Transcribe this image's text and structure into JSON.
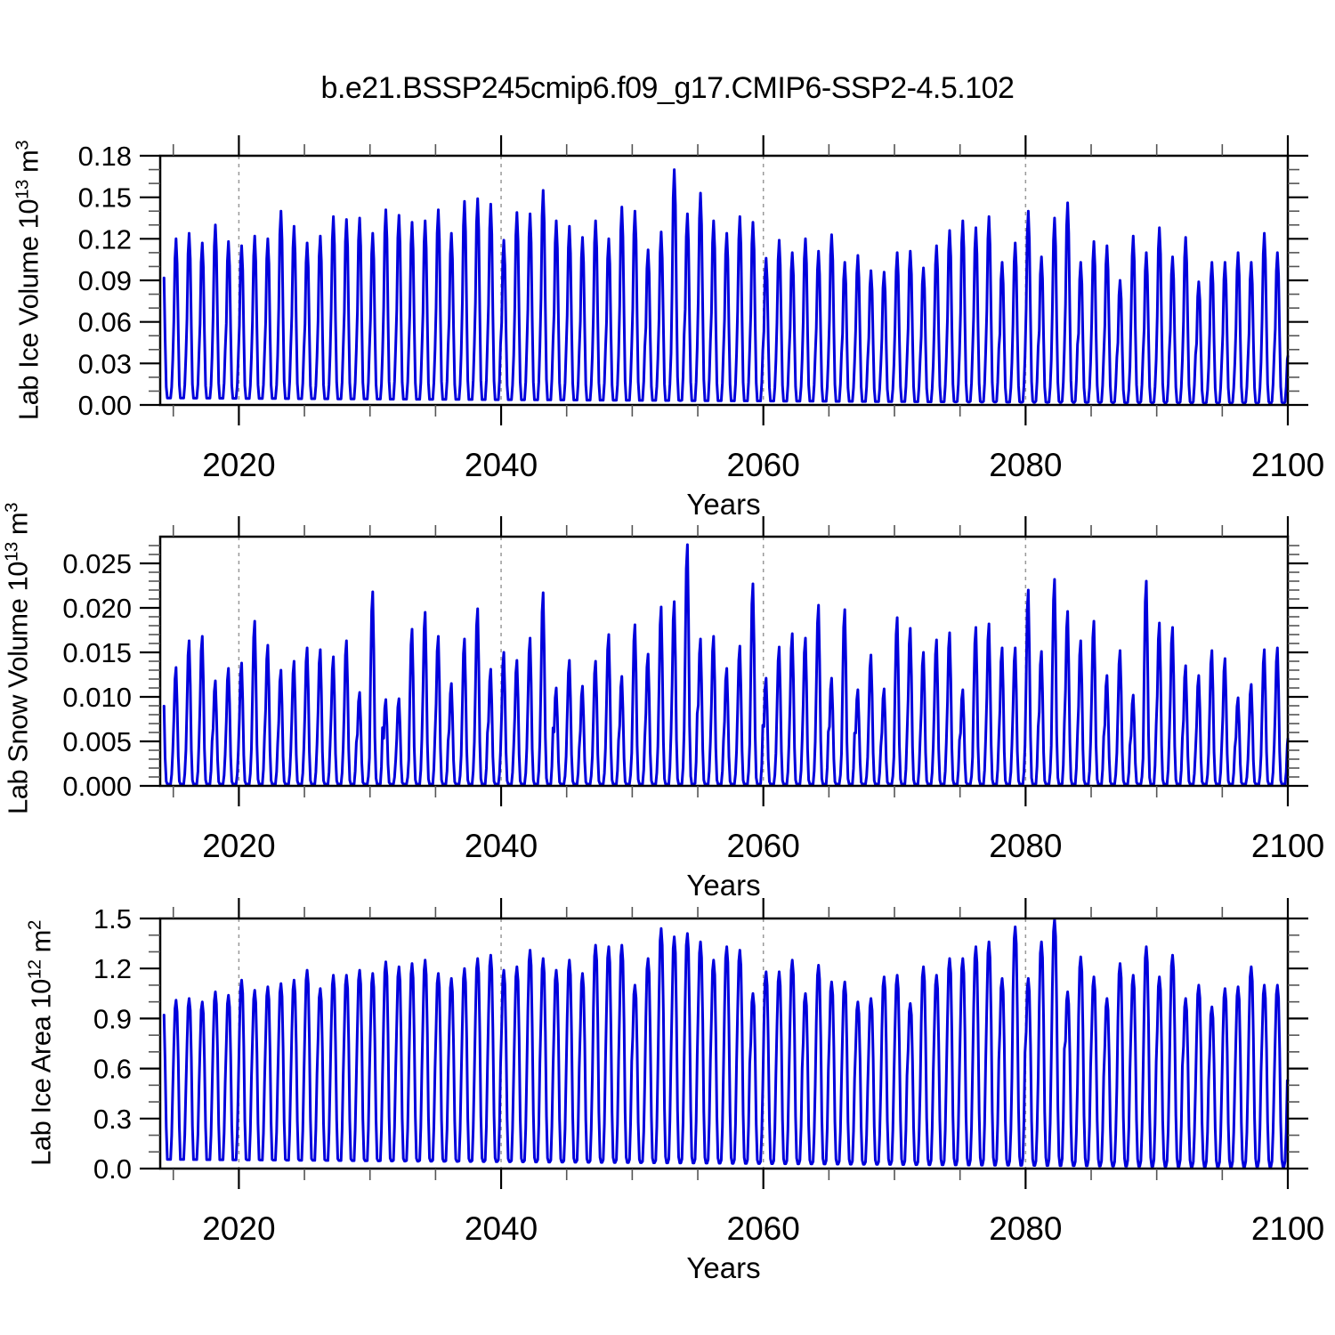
{
  "chart": {
    "title": "b.e21.BSSP245cmip6.f09_g17.CMIP6-SSP2-4.5.102"
  },
  "chart_data": [
    {
      "type": "line",
      "panel": "ice-volume",
      "ylabel": "Lab Ice Volume 10¹³ m³",
      "ylabel_parts": {
        "pre": "Lab Ice Volume 10",
        "sup1": "13",
        "mid": " m",
        "sup2": "3"
      },
      "xlabel": "Years",
      "color": "#0000dd",
      "x_range": [
        2014,
        2100
      ],
      "ylim": 0.18,
      "y_major_ticks": [
        0.0,
        0.03,
        0.06,
        0.09,
        0.12,
        0.15,
        0.18
      ],
      "y_major_labels": [
        "0.00",
        "0.03",
        "0.06",
        "0.09",
        "0.12",
        "0.15",
        "0.18"
      ],
      "y_minor_step": 0.01,
      "x_major_ticks": [
        2020,
        2040,
        2060,
        2080,
        2100
      ],
      "x_major_labels": [
        "2020",
        "2040",
        "2060",
        "2080",
        "2100"
      ],
      "x_minor_step": 5,
      "x_gridlines": [
        2020,
        2040,
        2060,
        2080
      ],
      "start_year": 2014,
      "annual_peaks": [
        0.108,
        0.12,
        0.124,
        0.117,
        0.13,
        0.118,
        0.115,
        0.122,
        0.12,
        0.14,
        0.129,
        0.117,
        0.122,
        0.136,
        0.134,
        0.135,
        0.124,
        0.141,
        0.137,
        0.132,
        0.133,
        0.141,
        0.124,
        0.147,
        0.149,
        0.145,
        0.119,
        0.139,
        0.138,
        0.155,
        0.133,
        0.129,
        0.121,
        0.133,
        0.12,
        0.143,
        0.14,
        0.112,
        0.125,
        0.17,
        0.138,
        0.153,
        0.133,
        0.124,
        0.136,
        0.132,
        0.106,
        0.119,
        0.11,
        0.12,
        0.111,
        0.123,
        0.103,
        0.108,
        0.097,
        0.096,
        0.11,
        0.111,
        0.099,
        0.115,
        0.126,
        0.133,
        0.128,
        0.136,
        0.103,
        0.117,
        0.14,
        0.107,
        0.135,
        0.146,
        0.103,
        0.118,
        0.115,
        0.09,
        0.122,
        0.11,
        0.128,
        0.107,
        0.121,
        0.089,
        0.103,
        0.103,
        0.11,
        0.103,
        0.124,
        0.11
      ],
      "seasonal_shape": [
        0.5,
        0.88,
        1.0,
        0.85,
        0.45,
        0.12,
        0.02,
        0.004,
        0.004,
        0.02,
        0.12,
        0.3
      ],
      "trough_start": 0.005,
      "trough_end": 0.001
    },
    {
      "type": "line",
      "panel": "snow-volume",
      "ylabel": "Lab Snow Volume 10¹³ m³",
      "ylabel_parts": {
        "pre": "Lab Snow Volume 10",
        "sup1": "13",
        "mid": " m",
        "sup2": "3"
      },
      "xlabel": "Years",
      "color": "#0000dd",
      "x_range": [
        2014,
        2100
      ],
      "ylim": 0.028,
      "y_major_ticks": [
        0.0,
        0.005,
        0.01,
        0.015,
        0.02,
        0.025
      ],
      "y_major_labels": [
        "0.000",
        "0.005",
        "0.010",
        "0.015",
        "0.020",
        "0.025"
      ],
      "y_minor_step": 0.001,
      "x_major_ticks": [
        2020,
        2040,
        2060,
        2080,
        2100
      ],
      "x_major_labels": [
        "2020",
        "2040",
        "2060",
        "2080",
        "2100"
      ],
      "x_minor_step": 5,
      "x_gridlines": [
        2020,
        2040,
        2060,
        2080
      ],
      "start_year": 2014,
      "annual_peaks": [
        0.0128,
        0.0133,
        0.0163,
        0.0168,
        0.0118,
        0.0132,
        0.0138,
        0.0185,
        0.0158,
        0.013,
        0.014,
        0.0155,
        0.0153,
        0.0145,
        0.0163,
        0.0105,
        0.0218,
        0.0097,
        0.0098,
        0.0176,
        0.0195,
        0.0168,
        0.0115,
        0.0165,
        0.0199,
        0.0131,
        0.015,
        0.0141,
        0.0166,
        0.0217,
        0.011,
        0.0141,
        0.0112,
        0.014,
        0.017,
        0.0123,
        0.0181,
        0.0148,
        0.0201,
        0.0207,
        0.0271,
        0.0165,
        0.0168,
        0.0132,
        0.0157,
        0.0227,
        0.0121,
        0.0156,
        0.0171,
        0.0166,
        0.0203,
        0.0121,
        0.0198,
        0.0108,
        0.0147,
        0.0109,
        0.0189,
        0.0177,
        0.015,
        0.0164,
        0.0172,
        0.0108,
        0.0178,
        0.0182,
        0.0155,
        0.0155,
        0.022,
        0.0151,
        0.0232,
        0.0196,
        0.0163,
        0.0185,
        0.0124,
        0.0152,
        0.0102,
        0.023,
        0.0183,
        0.0178,
        0.0135,
        0.0124,
        0.0152,
        0.0143,
        0.0099,
        0.0114,
        0.0153,
        0.0155
      ],
      "seasonal_shape": [
        0.55,
        0.9,
        1.0,
        0.7,
        0.25,
        0.04,
        0.002,
        0.001,
        0.001,
        0.01,
        0.1,
        0.3
      ],
      "trough_start": 0.0002,
      "trough_end": 0.0002
    },
    {
      "type": "line",
      "panel": "ice-area",
      "ylabel": "Lab Ice Area 10¹² m²",
      "ylabel_parts": {
        "pre": "Lab Ice Area 10",
        "sup1": "12",
        "mid": " m",
        "sup2": "2"
      },
      "xlabel": "Years",
      "color": "#0000dd",
      "x_range": [
        2014,
        2100
      ],
      "ylim": 1.5,
      "y_major_ticks": [
        0.0,
        0.3,
        0.6,
        0.9,
        1.2,
        1.5
      ],
      "y_major_labels": [
        "0.0",
        "0.3",
        "0.6",
        "0.9",
        "1.2",
        "1.5"
      ],
      "y_minor_step": 0.1,
      "x_major_ticks": [
        2020,
        2040,
        2060,
        2080,
        2100
      ],
      "x_major_labels": [
        "2020",
        "2040",
        "2060",
        "2080",
        "2100"
      ],
      "x_minor_step": 5,
      "x_gridlines": [
        2020,
        2040,
        2060,
        2080
      ],
      "start_year": 2014,
      "annual_peaks": [
        0.99,
        1.01,
        1.02,
        1.0,
        1.06,
        1.04,
        1.13,
        1.07,
        1.09,
        1.11,
        1.13,
        1.19,
        1.08,
        1.16,
        1.16,
        1.19,
        1.17,
        1.24,
        1.21,
        1.23,
        1.25,
        1.17,
        1.14,
        1.2,
        1.26,
        1.28,
        1.19,
        1.21,
        1.31,
        1.26,
        1.19,
        1.25,
        1.17,
        1.34,
        1.33,
        1.34,
        1.1,
        1.26,
        1.44,
        1.39,
        1.41,
        1.36,
        1.25,
        1.33,
        1.31,
        1.05,
        1.18,
        1.18,
        1.25,
        1.05,
        1.22,
        1.12,
        1.12,
        1.0,
        1.02,
        1.15,
        1.16,
        0.99,
        1.21,
        1.16,
        1.26,
        1.26,
        1.33,
        1.36,
        1.14,
        1.45,
        1.14,
        1.36,
        1.497,
        1.06,
        1.27,
        1.15,
        1.02,
        1.23,
        1.16,
        1.33,
        1.15,
        1.28,
        1.02,
        1.1,
        0.97,
        1.08,
        1.09,
        1.21,
        1.1,
        1.1
      ],
      "seasonal_shape": [
        0.72,
        0.95,
        1.0,
        0.93,
        0.65,
        0.25,
        0.05,
        0.01,
        0.01,
        0.04,
        0.2,
        0.48
      ],
      "trough_start": 0.055,
      "trough_end": 0.008
    }
  ]
}
